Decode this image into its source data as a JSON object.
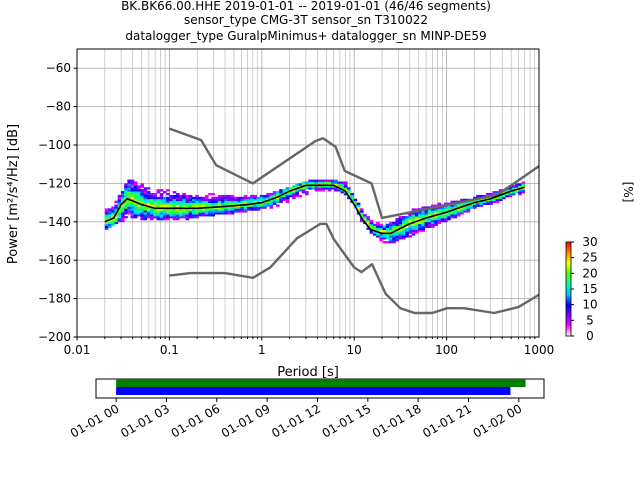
{
  "chart_data": [
    {
      "type": "heatmap",
      "title_lines": [
        "BK.BK66.00.HHE   2019-01-01 -- 2019-01-01  (46/46 segments)",
        "sensor_type CMG-3T sensor_sn T310022",
        "datalogger_type GuralpMinimus+ datalogger_sn MINP-DE59"
      ],
      "xlabel": "Period [s]",
      "ylabel": "Power [m²/s⁴/Hz] [dB]",
      "x_scale": "log",
      "xlim": [
        0.01,
        1000
      ],
      "ylim": [
        -200,
        -50
      ],
      "x_ticks": [
        {
          "value": 0.01,
          "label": "0.01"
        },
        {
          "value": 0.1,
          "label": "0.1"
        },
        {
          "value": 1,
          "label": "1"
        },
        {
          "value": 10,
          "label": "10"
        },
        {
          "value": 100,
          "label": "100"
        },
        {
          "value": 1000,
          "label": "1000"
        }
      ],
      "y_ticks": [
        {
          "value": -60,
          "label": "−60"
        },
        {
          "value": -80,
          "label": "−80"
        },
        {
          "value": -100,
          "label": "−100"
        },
        {
          "value": -120,
          "label": "−120"
        },
        {
          "value": -140,
          "label": "−140"
        },
        {
          "value": -160,
          "label": "−160"
        },
        {
          "value": -180,
          "label": "−180"
        },
        {
          "value": -200,
          "label": "−200"
        }
      ],
      "grid": true,
      "colorbar": {
        "label": "[%]",
        "range": [
          0,
          30
        ],
        "ticks": [
          {
            "value": 0,
            "label": "0"
          },
          {
            "value": 5,
            "label": "5"
          },
          {
            "value": 10,
            "label": "10"
          },
          {
            "value": 15,
            "label": "15"
          },
          {
            "value": 20,
            "label": "20"
          },
          {
            "value": 25,
            "label": "25"
          },
          {
            "value": 30,
            "label": "30"
          }
        ],
        "colors": [
          "#ffffff",
          "#ff00ff",
          "#8000ff",
          "#0000ff",
          "#00c8ff",
          "#00ffa0",
          "#50ff00",
          "#ffff00",
          "#ff8000",
          "#ff0000"
        ]
      },
      "series": [
        {
          "role": "noise-model-high",
          "color": "#666666",
          "x": [
            0.1,
            0.22,
            0.32,
            0.8,
            3.8,
            4.6,
            6.3,
            7.9,
            15.4,
            20,
            354,
            1000
          ],
          "y": [
            -91.5,
            -97.4,
            -110.5,
            -120,
            -98,
            -96.5,
            -101,
            -113.5,
            -120,
            -138,
            -126,
            -111
          ]
        },
        {
          "role": "noise-model-low",
          "color": "#666666",
          "x": [
            0.1,
            0.17,
            0.4,
            0.8,
            1.24,
            2.4,
            4.3,
            5,
            6,
            10,
            12,
            15.6,
            21.9,
            31.6,
            45,
            70,
            101,
            154,
            328,
            600,
            1000
          ],
          "y": [
            -168,
            -166.7,
            -166.7,
            -169.2,
            -163.7,
            -148.6,
            -141.1,
            -141.1,
            -149,
            -163.8,
            -166.2,
            -162.1,
            -177.5,
            -185,
            -187.5,
            -187.5,
            -185,
            -185,
            -187.5,
            -184.4,
            -178
          ]
        },
        {
          "role": "mode",
          "color": "#000000",
          "x": [
            0.02,
            0.025,
            0.03,
            0.035,
            0.05,
            0.07,
            0.1,
            0.2,
            0.4,
            0.7,
            1,
            1.5,
            2,
            3,
            4,
            6,
            8,
            10,
            12,
            15,
            20,
            25,
            30,
            40,
            60,
            100,
            150,
            200,
            300,
            500,
            700
          ],
          "y": [
            -140,
            -138,
            -131,
            -128,
            -131,
            -133,
            -133,
            -133,
            -132,
            -131,
            -130,
            -127,
            -124,
            -121,
            -121,
            -121,
            -124,
            -131,
            -138,
            -144,
            -146,
            -146,
            -144,
            -141,
            -138,
            -135,
            -132,
            -130,
            -128,
            -124,
            -122
          ]
        }
      ],
      "density_envelope": {
        "x": [
          0.02,
          0.025,
          0.03,
          0.035,
          0.04,
          0.05,
          0.07,
          0.1,
          0.15,
          0.2,
          0.3,
          0.5,
          0.8,
          1,
          1.5,
          2,
          3,
          4,
          5,
          6,
          8,
          10,
          12,
          15,
          20,
          25,
          30,
          40,
          60,
          100,
          150,
          200,
          300,
          500,
          700
        ],
        "upper": [
          -134,
          -128,
          -124,
          -118,
          -119,
          -121,
          -124,
          -124,
          -125,
          -126,
          -126,
          -127,
          -127,
          -126,
          -124,
          -122,
          -119,
          -118,
          -118,
          -118,
          -120,
          -128,
          -135,
          -140,
          -142,
          -140,
          -138,
          -134,
          -132,
          -130,
          -128,
          -127,
          -125,
          -121,
          -119
        ],
        "lower": [
          -145,
          -142,
          -140,
          -139,
          -139,
          -139,
          -139,
          -139,
          -139,
          -138,
          -137,
          -136,
          -135,
          -134,
          -132,
          -129,
          -126,
          -124,
          -124,
          -124,
          -127,
          -134,
          -142,
          -147,
          -151,
          -152,
          -150,
          -148,
          -144,
          -140,
          -136,
          -133,
          -131,
          -127,
          -126
        ]
      }
    },
    {
      "type": "timeline",
      "x_ticks": [
        "01-01 00",
        "01-01 03",
        "01-01 06",
        "01-01 09",
        "01-01 12",
        "01-01 15",
        "01-01 18",
        "01-01 21",
        "01-02 00"
      ],
      "xlim_hours": [
        -1.2,
        25.5
      ],
      "bars": [
        {
          "color": "#008000",
          "start_hours": 0,
          "end_hours": 24.4
        },
        {
          "color": "#0000ff",
          "start_hours": 0,
          "end_hours": 23.5
        }
      ]
    }
  ]
}
